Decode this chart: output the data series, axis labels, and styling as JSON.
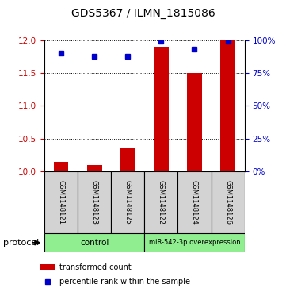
{
  "title": "GDS5367 / ILMN_1815086",
  "samples": [
    "GSM1148121",
    "GSM1148123",
    "GSM1148125",
    "GSM1148122",
    "GSM1148124",
    "GSM1148126"
  ],
  "bar_values": [
    10.15,
    10.1,
    10.35,
    11.9,
    11.5,
    12.0
  ],
  "percentile_values": [
    90,
    88,
    88,
    99,
    93,
    99
  ],
  "ylim_left": [
    10,
    12
  ],
  "ylim_right": [
    0,
    100
  ],
  "yticks_left": [
    10,
    10.5,
    11,
    11.5,
    12
  ],
  "yticks_right": [
    0,
    25,
    50,
    75,
    100
  ],
  "ytick_labels_right": [
    "0%",
    "25%",
    "50%",
    "75%",
    "100%"
  ],
  "bar_color": "#cc0000",
  "dot_color": "#0000cc",
  "bar_baseline": 10,
  "protocol_labels": [
    "control",
    "miR-542-3p overexpression"
  ],
  "protocol_color": "#90ee90",
  "legend_bar_label": "transformed count",
  "legend_dot_label": "percentile rank within the sample",
  "protocol_text": "protocol",
  "sample_box_color": "#d3d3d3",
  "left_tick_color": "#cc0000",
  "right_tick_color": "#0000cc"
}
